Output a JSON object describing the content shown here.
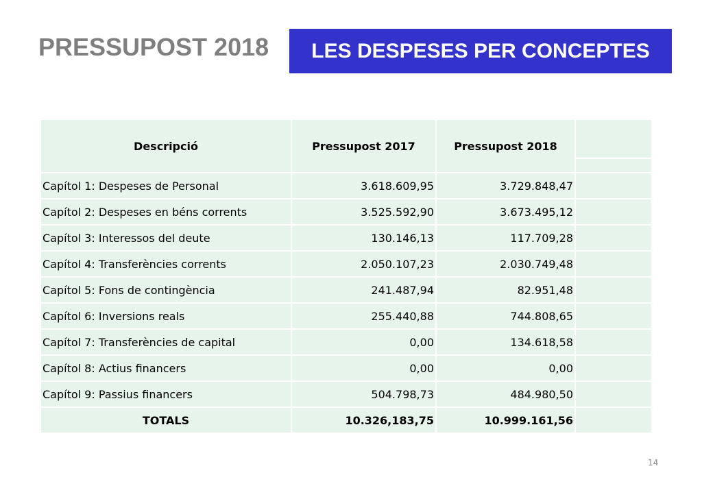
{
  "header": {
    "title": "PRESSUPOST 2018",
    "section": "LES DESPESES PER CONCEPTES",
    "banner_color": "#3333cc",
    "title_color": "#7f7f7f"
  },
  "table": {
    "row_background": "#e6f4ec",
    "headers": {
      "description": "Descripció",
      "budget_2017": "Pressupost 2017",
      "budget_2018": "Pressupost 2018"
    },
    "rows": [
      {
        "description": "Capítol 1: Despeses de Personal",
        "budget_2017": "3.618.609,95",
        "budget_2018": "3.729.848,47"
      },
      {
        "description": "Capítol 2: Despeses en béns corrents",
        "budget_2017": "3.525.592,90",
        "budget_2018": "3.673.495,12"
      },
      {
        "description": "Capítol 3: Interessos del deute",
        "budget_2017": "130.146,13",
        "budget_2018": "117.709,28"
      },
      {
        "description": "Capítol 4: Transferències corrents",
        "budget_2017": "2.050.107,23",
        "budget_2018": "2.030.749,48"
      },
      {
        "description": "Capítol 5: Fons de contingència",
        "budget_2017": "241.487,94",
        "budget_2018": "82.951,48"
      },
      {
        "description": "Capítol 6: Inversions reals",
        "budget_2017": "255.440,88",
        "budget_2018": "744.808,65"
      },
      {
        "description": "Capítol 7: Transferències de capital",
        "budget_2017": "0,00",
        "budget_2018": "134.618,58"
      },
      {
        "description": "Capítol 8: Actius financers",
        "budget_2017": "0,00",
        "budget_2018": "0,00"
      },
      {
        "description": "Capítol 9: Passius financers",
        "budget_2017": "504.798,73",
        "budget_2018": "484.980,50"
      }
    ],
    "totals": {
      "label": "TOTALS",
      "budget_2017": "10.326,183,75",
      "budget_2018": "10.999.161,56"
    }
  },
  "footer": {
    "page_number": "14"
  }
}
